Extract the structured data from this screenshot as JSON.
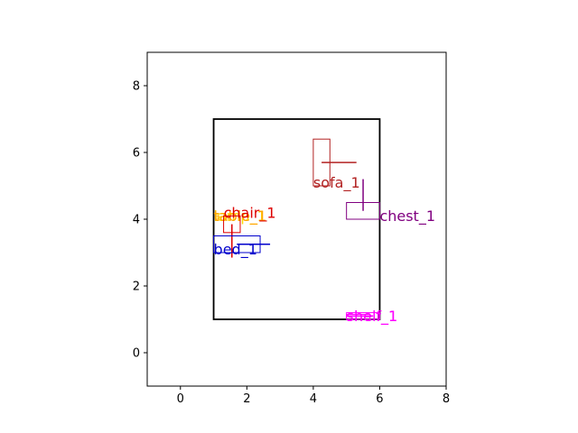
{
  "chart_data": {
    "type": "scatter",
    "title": "",
    "xlabel": "",
    "ylabel": "",
    "xlim": [
      -1,
      8
    ],
    "ylim": [
      -1,
      9
    ],
    "grid": false,
    "xticks": [
      0,
      2,
      4,
      6,
      8
    ],
    "yticks": [
      0,
      2,
      4,
      6,
      8
    ],
    "room": {
      "x0": 1,
      "y0": 1,
      "x1": 6,
      "y1": 7,
      "color": "#000000"
    },
    "objects": [
      {
        "name": "sofa_1",
        "color": "#b22222",
        "rect": [
          4.0,
          5.0,
          4.5,
          6.4
        ],
        "hline": [
          4.25,
          5.3,
          5.7
        ],
        "vline": null,
        "label_at": [
          4.0,
          5.0
        ]
      },
      {
        "name": "chest_1",
        "color": "#800080",
        "rect": [
          5.0,
          4.0,
          6.0,
          4.5
        ],
        "hline": null,
        "vline": [
          5.5,
          4.25,
          5.2
        ],
        "label_at": [
          6.0,
          4.0
        ]
      },
      {
        "name": "lamp_1",
        "color": "#ffd700",
        "rect": [
          1.05,
          4.05,
          1.15,
          4.15
        ],
        "hline": null,
        "vline": null,
        "label_at": [
          1.0,
          4.0
        ]
      },
      {
        "name": "table_1",
        "color": "#ffa500",
        "rect": [
          1.05,
          4.0,
          1.15,
          4.1
        ],
        "hline": null,
        "vline": null,
        "label_at": [
          1.0,
          4.0
        ]
      },
      {
        "name": "chair_1",
        "color": "#dd0000",
        "rect": [
          1.3,
          3.6,
          1.8,
          4.1
        ],
        "hline": null,
        "vline": [
          1.55,
          2.85,
          3.85
        ],
        "label_at": [
          1.3,
          4.1
        ]
      },
      {
        "name": "bed_1",
        "color": "#0000cc",
        "rect": [
          1.0,
          3.0,
          2.4,
          3.5
        ],
        "hline": [
          1.7,
          2.7,
          3.25
        ],
        "vline": null,
        "label_at": [
          1.0,
          3.0
        ]
      },
      {
        "name": "shelf_1",
        "color": "#ff00ff",
        "rect": [
          5.0,
          1.0,
          6.0,
          1.2
        ],
        "hline": [
          5.0,
          5.8,
          1.1
        ],
        "vline": null,
        "label_at": [
          5.0,
          1.0
        ]
      },
      {
        "name": "shelf_1",
        "color": "#ff00ff",
        "rect": [
          5.0,
          1.0,
          5.7,
          1.15
        ],
        "hline": null,
        "vline": null,
        "label_at": [
          5.0,
          1.0
        ]
      }
    ]
  }
}
